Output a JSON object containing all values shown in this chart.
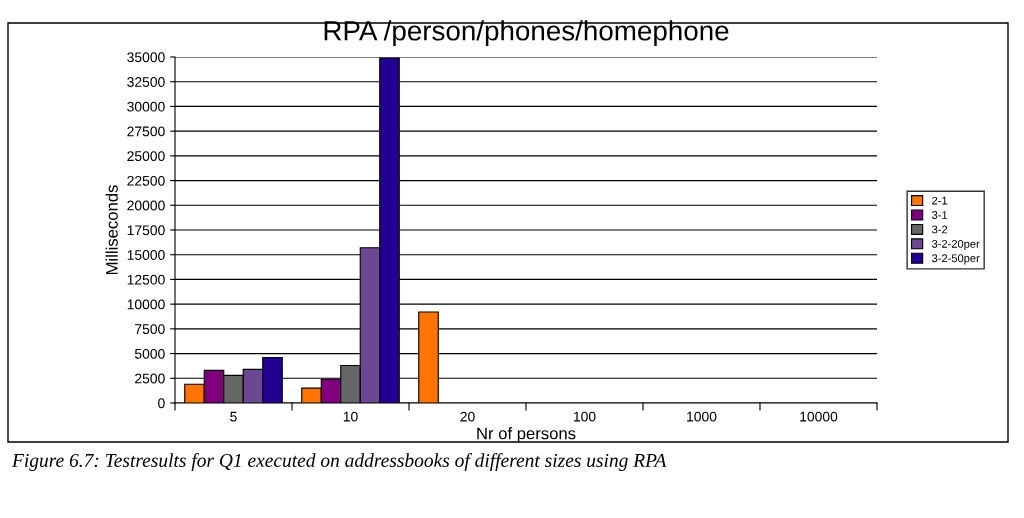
{
  "chart_data": {
    "type": "bar",
    "title": "RPA /person/phones/homephone",
    "xlabel": "Nr of persons",
    "ylabel": "Milliseconds",
    "categories": [
      "5",
      "10",
      "20",
      "100",
      "1000",
      "10000"
    ],
    "series": [
      {
        "name": "2-1",
        "color": "#ff7300",
        "values": [
          1900,
          1500,
          9200,
          null,
          null,
          null
        ]
      },
      {
        "name": "3-1",
        "color": "#800080",
        "values": [
          3300,
          2400,
          null,
          null,
          null,
          null
        ]
      },
      {
        "name": "3-2",
        "color": "#666666",
        "values": [
          2800,
          3800,
          null,
          null,
          null,
          null
        ]
      },
      {
        "name": "3-2-20per",
        "color": "#6b4894",
        "values": [
          3400,
          15700,
          null,
          null,
          null,
          null
        ]
      },
      {
        "name": "3-2-50per",
        "color": "#230093",
        "values": [
          4600,
          34900,
          null,
          null,
          null,
          null
        ]
      }
    ],
    "ylim": [
      0,
      35000
    ],
    "yticks": [
      0,
      2500,
      5000,
      7500,
      10000,
      12500,
      15000,
      17500,
      20000,
      22500,
      25000,
      27500,
      30000,
      32500,
      35000
    ],
    "grid": "y",
    "legend": "right",
    "annotations": [
      "Figure 6.7: Testresults for Q1 executed on addressbooks of different sizes using RPA"
    ]
  }
}
